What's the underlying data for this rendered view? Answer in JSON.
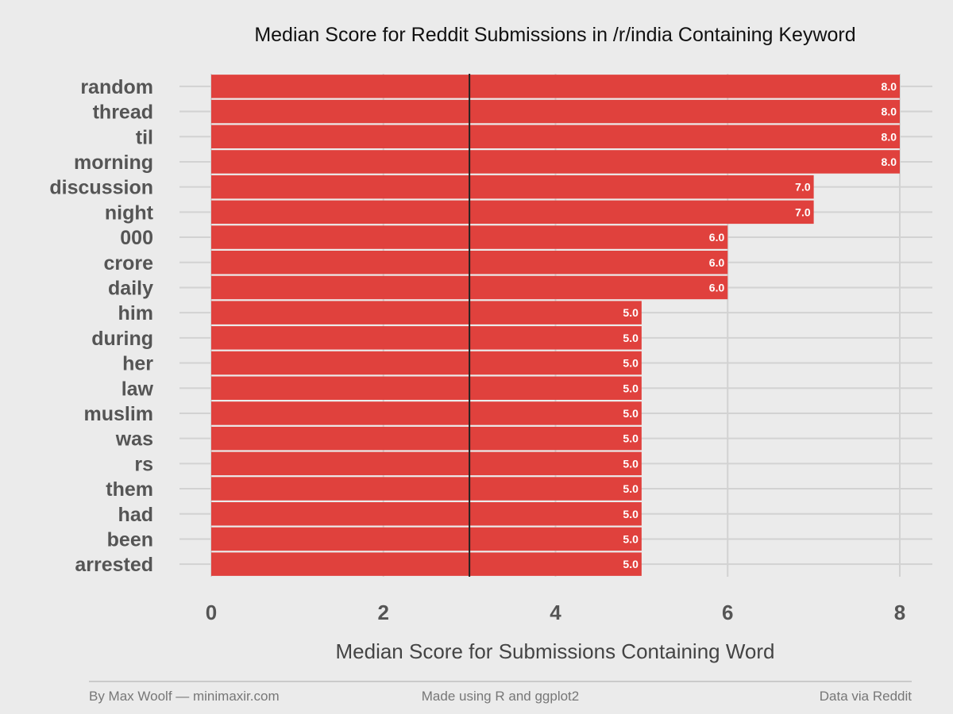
{
  "chart_data": {
    "type": "bar",
    "orientation": "horizontal",
    "title": "Median Score for Reddit Submissions in /r/india Containing Keyword",
    "xlabel": "Median Score for Submissions Containing Word",
    "ylabel": "",
    "categories": [
      "random",
      "thread",
      "til",
      "morning",
      "discussion",
      "night",
      "000",
      "crore",
      "daily",
      "him",
      "during",
      "her",
      "law",
      "muslim",
      "was",
      "rs",
      "them",
      "had",
      "been",
      "arrested"
    ],
    "values": [
      8,
      8,
      8,
      8,
      7,
      7,
      6,
      6,
      6,
      5,
      5,
      5,
      5,
      5,
      5,
      5,
      5,
      5,
      5,
      5
    ],
    "data_labels": [
      "8.0",
      "8.0",
      "8.0",
      "8.0",
      "7.0",
      "7.0",
      "6.0",
      "6.0",
      "6.0",
      "5.0",
      "5.0",
      "5.0",
      "5.0",
      "5.0",
      "5.0",
      "5.0",
      "5.0",
      "5.0",
      "5.0",
      "5.0"
    ],
    "xlim": [
      0,
      8
    ],
    "x_ticks": [
      0,
      2,
      4,
      6,
      8
    ],
    "x_tick_labels": [
      "0",
      "2",
      "4",
      "6",
      "8"
    ],
    "reference_line": 3,
    "bar_color": "#e0413d",
    "reference_line_color": "#222222",
    "grid": true,
    "legend": "none"
  },
  "footer": {
    "left": "By Max Woolf — minimaxir.com",
    "center": "Made using R and ggplot2",
    "right": "Data via Reddit"
  }
}
